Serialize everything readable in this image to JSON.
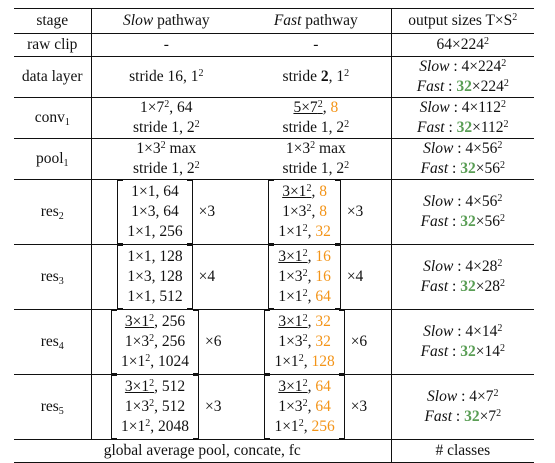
{
  "headers": {
    "stage": "stage",
    "slow": "Slow",
    "slow_suffix": " pathway",
    "fast": "Fast",
    "fast_suffix": " pathway",
    "output": "output sizes T×S"
  },
  "raw_clip": {
    "stage": "raw clip",
    "slow": "-",
    "fast": "-",
    "output": "64×224"
  },
  "data_layer": {
    "stage": "data layer",
    "slow": "stride 16, 1",
    "fast_pre": "stride ",
    "fast_bold": "2",
    "fast_post": ", 1",
    "out_slow_label": "Slow",
    "out_slow_val": " : 4×224",
    "out_fast_label": "Fast",
    "out_fast_pre": " : ",
    "out_fast_green": "32",
    "out_fast_post": "×224"
  },
  "conv1": {
    "stage": "conv",
    "slow_line1": "1×7",
    "slow_line1b": ", 64",
    "slow_line2": "stride 1, 2",
    "fast_line1": "5×7",
    "fast_line1_sep": ", ",
    "fast_line1_orange": "8",
    "fast_line2": "stride 1, 2",
    "out_slow_label": "Slow",
    "out_slow_val": " : 4×112",
    "out_fast_label": "Fast",
    "out_fast_pre": " : ",
    "out_fast_green": "32",
    "out_fast_post": "×112"
  },
  "pool1": {
    "stage": "pool",
    "slow_line1": "1×3",
    "slow_line1b": " max",
    "slow_line2": "stride 1, 2",
    "fast_line1": "1×3",
    "fast_line1b": " max",
    "fast_line2": "stride 1, 2",
    "out_slow_label": "Slow",
    "out_slow_val": " : 4×56",
    "out_fast_label": "Fast",
    "out_fast_pre": " : ",
    "out_fast_green": "32",
    "out_fast_post": "×56"
  },
  "res2": {
    "stage": "res",
    "slow": [
      "1×1, 64",
      "1×3, 64",
      "1×1, 256"
    ],
    "slow_times": "×3",
    "fast": [
      "3×1",
      "1×3",
      "1×1"
    ],
    "fast_orange": [
      "8",
      "8",
      "32"
    ],
    "fast_times": "×3",
    "out_slow_label": "Slow",
    "out_slow_val": " : 4×56",
    "out_fast_label": "Fast",
    "out_fast_pre": " : ",
    "out_fast_green": "32",
    "out_fast_post": "×56"
  },
  "res3": {
    "stage": "res",
    "slow": [
      "1×1, 128",
      "1×3, 128",
      "1×1, 512"
    ],
    "slow_times": "×4",
    "fast": [
      "3×1",
      "1×3",
      "1×1"
    ],
    "fast_orange": [
      "16",
      "16",
      "64"
    ],
    "fast_times": "×4",
    "out_slow_label": "Slow",
    "out_slow_val": " : 4×28",
    "out_fast_label": "Fast",
    "out_fast_pre": " : ",
    "out_fast_green": "32",
    "out_fast_post": "×28"
  },
  "res4": {
    "stage": "res",
    "slow": [
      "3×1",
      "1×3",
      "1×1"
    ],
    "slow_vals": [
      "256",
      "256",
      "1024"
    ],
    "slow_times": "×6",
    "fast": [
      "3×1",
      "1×3",
      "1×1"
    ],
    "fast_orange": [
      "32",
      "32",
      "128"
    ],
    "fast_times": "×6",
    "out_slow_label": "Slow",
    "out_slow_val": " : 4×14",
    "out_fast_label": "Fast",
    "out_fast_pre": " : ",
    "out_fast_green": "32",
    "out_fast_post": "×14"
  },
  "res5": {
    "stage": "res",
    "slow": [
      "3×1",
      "1×3",
      "1×1"
    ],
    "slow_vals": [
      "512",
      "512",
      "2048"
    ],
    "slow_times": "×3",
    "fast": [
      "3×1",
      "1×3",
      "1×1"
    ],
    "fast_orange": [
      "64",
      "64",
      "256"
    ],
    "fast_times": "×3",
    "out_slow_label": "Slow",
    "out_slow_val": " : 4×7",
    "out_fast_label": "Fast",
    "out_fast_pre": " : ",
    "out_fast_green": "32",
    "out_fast_post": "×7"
  },
  "footer": {
    "left": "global average pool, concate, fc",
    "right": "# classes"
  },
  "sub_1": "1",
  "sub_2": "2",
  "sub_3": "3",
  "sub_4": "4",
  "sub_5": "5",
  "sq": "2",
  "ex2": "2",
  "colors": {
    "orange": "#f39418",
    "green": "#5a9e55"
  }
}
